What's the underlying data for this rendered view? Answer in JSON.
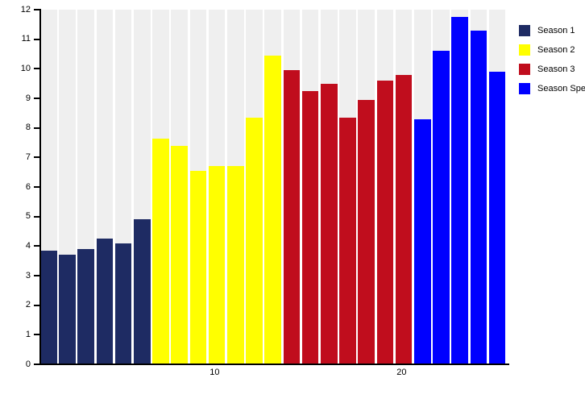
{
  "chart_data": {
    "type": "bar",
    "title": "",
    "xlabel": "",
    "ylabel": "",
    "ylim": [
      0,
      12
    ],
    "ytick_step": 1,
    "ytick_labels": [
      "0",
      "1",
      "2",
      "3",
      "4",
      "5",
      "6",
      "7",
      "8",
      "9",
      "10",
      "11",
      "12"
    ],
    "xticks": [
      {
        "episode": 10,
        "label": "10"
      },
      {
        "episode": 20,
        "label": "20"
      }
    ],
    "grid": "vertical-white-column-separators",
    "legend_position": "right-top",
    "plot_background": "#efefef",
    "separator_color": "#ffffff",
    "axis_color": "#000000",
    "series": [
      {
        "name": "Season 1",
        "color": "#1e2b63",
        "episodes": [
          1,
          2,
          3,
          4,
          5,
          6
        ],
        "values": [
          3.85,
          3.7,
          3.9,
          4.25,
          4.1,
          4.9
        ]
      },
      {
        "name": "Season 2",
        "color": "#ffff00",
        "episodes": [
          7,
          8,
          9,
          10,
          11,
          12,
          13
        ],
        "values": [
          7.65,
          7.4,
          6.55,
          6.7,
          6.7,
          8.35,
          10.45
        ]
      },
      {
        "name": "Season 3",
        "color": "#c00d1d",
        "episodes": [
          14,
          15,
          16,
          17,
          18,
          19,
          20
        ],
        "values": [
          9.95,
          9.25,
          9.5,
          8.35,
          8.95,
          9.6,
          9.8
        ]
      },
      {
        "name": "Season Spec",
        "color": "#0000ff",
        "episodes": [
          21,
          22,
          23,
          24,
          25
        ],
        "values": [
          8.3,
          10.6,
          11.75,
          11.3,
          9.9
        ]
      }
    ]
  }
}
